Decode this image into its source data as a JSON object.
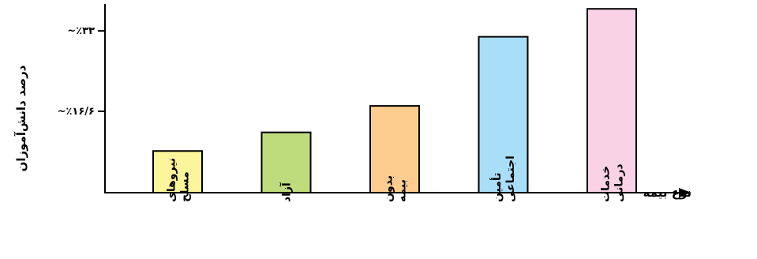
{
  "chart_data": {
    "type": "bar",
    "categories": [
      [
        "نیروهای",
        "مسلح"
      ],
      [
        "آزاد"
      ],
      [
        "بدون",
        "بیمه"
      ],
      [
        "تأمین",
        "اجتماعی"
      ],
      [
        "خدمات",
        "درمانی"
      ]
    ],
    "values": [
      8.5,
      12.3,
      17.7,
      31.8,
      37.5
    ],
    "colors": [
      "#fdf59b",
      "#bfdc7c",
      "#fdcd8f",
      "#a9def8",
      "#f9d2e6"
    ],
    "xlabel": "نوع بیمه",
    "ylabel": "درصد دانش‌آموزان",
    "yticks": [
      {
        "value": 16.6,
        "label": "~٪۱۶/۶"
      },
      {
        "value": 33,
        "label": "~٪۳۳"
      }
    ],
    "ylim": [
      0,
      38.5
    ],
    "grid": false
  }
}
